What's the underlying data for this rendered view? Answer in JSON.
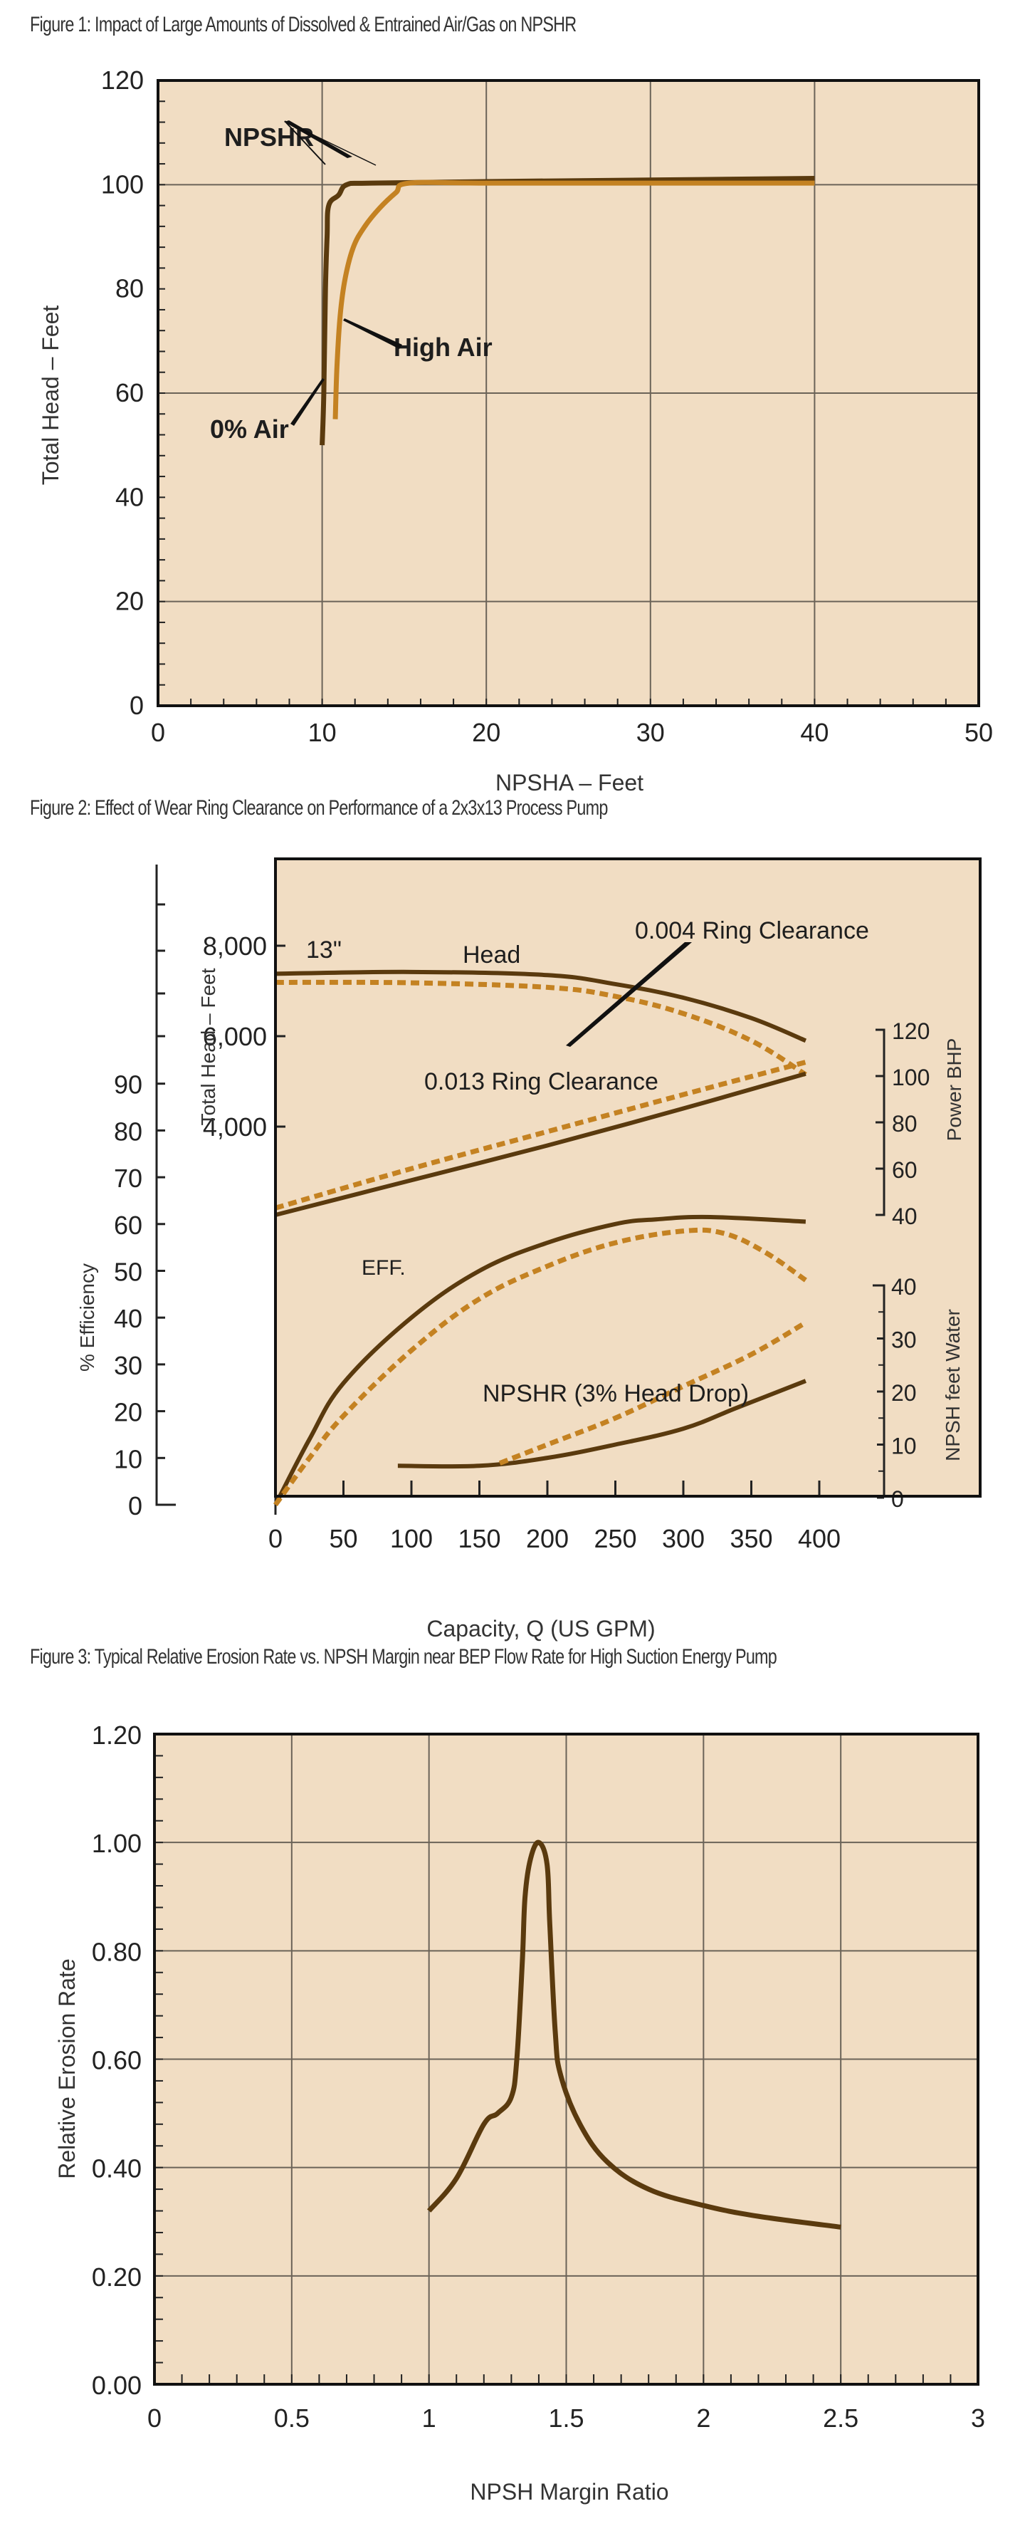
{
  "colors": {
    "plot_bg": "#F1DDC3",
    "grid": "#6b6358",
    "frame": "#111111",
    "dark_curve": "#5A3A0E",
    "light_curve": "#C48222"
  },
  "figures": [
    {
      "title": "Figure 1: Impact of Large Amounts of Dissolved & Entrained Air/Gas on NPSHR"
    },
    {
      "title": "Figure 2: Effect of Wear Ring Clearance on Performance of a 2x3x13 Process Pump"
    },
    {
      "title": "Figure 3: Typical Relative Erosion Rate vs. NPSH Margin near BEP Flow Rate for High Suction Energy Pump"
    }
  ],
  "chart_data": [
    {
      "type": "line",
      "title": "Figure 1: Impact of Large Amounts of Dissolved & Entrained Air/Gas on NPSHR",
      "xlabel": "NPSHA – Feet",
      "ylabel": "Total Head – Feet",
      "xlim": [
        0,
        50
      ],
      "ylim": [
        0,
        120
      ],
      "xticks": [
        0,
        10,
        20,
        30,
        40,
        50
      ],
      "yticks": [
        0,
        20,
        40,
        60,
        80,
        100,
        120
      ],
      "grid": true,
      "series": [
        {
          "name": "0% Air",
          "color": "dark",
          "x": [
            10.0,
            10.1,
            10.2,
            10.3,
            10.4,
            11.0,
            11.5,
            13,
            20,
            30,
            40
          ],
          "y": [
            50,
            60,
            80,
            90,
            96,
            98,
            100,
            100.3,
            100.6,
            100.9,
            101.2
          ]
        },
        {
          "name": "High Air",
          "color": "light",
          "x": [
            10.8,
            10.9,
            11.1,
            11.4,
            11.9,
            12.6,
            13.5,
            14.5,
            15.3,
            20,
            30,
            40
          ],
          "y": [
            55,
            65,
            75,
            82,
            88,
            92,
            95.5,
            98.5,
            100.3,
            100.3,
            100.3,
            100.3
          ]
        }
      ],
      "annotations": [
        "NPSHR",
        "High Air",
        "0% Air"
      ]
    },
    {
      "type": "line",
      "title": "Figure 2: Effect of Wear Ring Clearance on Performance of a 2x3x13 Process Pump",
      "xlabel": "Capacity, Q (US GPM)",
      "xlim": [
        0,
        420
      ],
      "xticks": [
        0,
        50,
        100,
        150,
        200,
        250,
        300,
        350,
        400
      ],
      "axes": {
        "head": {
          "label": "Total Head – Feet",
          "ticks": [
            "4,000",
            "6,000",
            "8,000"
          ],
          "values": [
            4000,
            6000,
            8000
          ]
        },
        "efficiency": {
          "label": "% Efficiency",
          "ticks": [
            0,
            10,
            20,
            30,
            40,
            50,
            60,
            70,
            80,
            90
          ]
        },
        "power": {
          "label": "Power BHP",
          "ticks": [
            40,
            60,
            80,
            100,
            120
          ]
        },
        "npsh": {
          "label": "NPSH feet Water",
          "ticks": [
            0,
            10,
            20,
            30,
            40
          ]
        }
      },
      "series": [
        {
          "name": "Head (0.004 Ring Clearance)",
          "axis": "head",
          "style": "solid",
          "x": [
            0,
            100,
            200,
            250,
            300,
            350,
            390
          ],
          "y": [
            7380,
            7420,
            7350,
            7150,
            6850,
            6400,
            5900
          ]
        },
        {
          "name": "Head (0.013 Ring Clearance)",
          "axis": "head",
          "style": "dashed",
          "x": [
            0,
            100,
            200,
            250,
            300,
            350,
            390
          ],
          "y": [
            7190,
            7180,
            7080,
            6880,
            6500,
            5900,
            5150
          ]
        },
        {
          "name": "Power (0.004)",
          "axis": "power",
          "style": "solid",
          "x": [
            0,
            100,
            200,
            300,
            390
          ],
          "y": [
            40,
            55,
            70,
            86,
            101
          ]
        },
        {
          "name": "Power (0.013)",
          "axis": "power",
          "style": "dashed",
          "x": [
            0,
            100,
            200,
            300,
            390
          ],
          "y": [
            43,
            60,
            76,
            92,
            106
          ]
        },
        {
          "name": "Efficiency (0.004)",
          "axis": "efficiency",
          "style": "solid",
          "x": [
            0,
            25,
            50,
            100,
            150,
            200,
            250,
            280,
            320,
            390
          ],
          "y": [
            0,
            14,
            26,
            40,
            50,
            56,
            60,
            61,
            61.5,
            60.5
          ]
        },
        {
          "name": "Efficiency (0.013)",
          "axis": "efficiency",
          "style": "dashed",
          "x": [
            0,
            25,
            50,
            100,
            150,
            200,
            250,
            300,
            330,
            360,
            390
          ],
          "y": [
            0,
            10,
            19,
            33,
            44,
            51,
            56,
            58.5,
            58,
            54,
            48
          ]
        },
        {
          "name": "NPSHR (0.004)",
          "axis": "npsh",
          "style": "solid",
          "x": [
            90,
            150,
            200,
            250,
            300,
            340,
            390
          ],
          "y": [
            6,
            6,
            7.5,
            10,
            13,
            17,
            22
          ]
        },
        {
          "name": "NPSHR (0.013)",
          "axis": "npsh",
          "style": "dashed",
          "x": [
            165,
            200,
            250,
            300,
            350,
            390
          ],
          "y": [
            6.5,
            10,
            15,
            21,
            27,
            33
          ]
        }
      ],
      "annotations": [
        "13\"",
        "Head",
        "0.004 Ring Clearance",
        "0.013 Ring Clearance",
        "EFF.",
        "NPSHR (3% Head Drop)"
      ]
    },
    {
      "type": "line",
      "title": "Figure 3: Typical Relative Erosion Rate vs. NPSH Margin near BEP Flow Rate for High Suction Energy Pump",
      "xlabel": "NPSH Margin Ratio",
      "ylabel": "Relative Erosion Rate",
      "xlim": [
        0,
        3
      ],
      "ylim": [
        0,
        1.2
      ],
      "xticks": [
        "0",
        "0.5",
        "1",
        "1.5",
        "2",
        "2.5",
        "3"
      ],
      "yticks": [
        "0.00",
        "0.20",
        "0.40",
        "0.60",
        "0.80",
        "1.00",
        "1.20"
      ],
      "grid": true,
      "series": [
        {
          "name": "Relative Erosion Rate",
          "x": [
            1.0,
            1.1,
            1.2,
            1.25,
            1.3,
            1.32,
            1.34,
            1.35,
            1.37,
            1.4,
            1.43,
            1.44,
            1.46,
            1.48,
            1.55,
            1.65,
            1.8,
            2.0,
            2.2,
            2.5
          ],
          "y": [
            0.32,
            0.38,
            0.48,
            0.5,
            0.53,
            0.6,
            0.78,
            0.9,
            0.97,
            1.0,
            0.96,
            0.85,
            0.65,
            0.57,
            0.48,
            0.41,
            0.36,
            0.33,
            0.31,
            0.29
          ]
        }
      ]
    }
  ]
}
